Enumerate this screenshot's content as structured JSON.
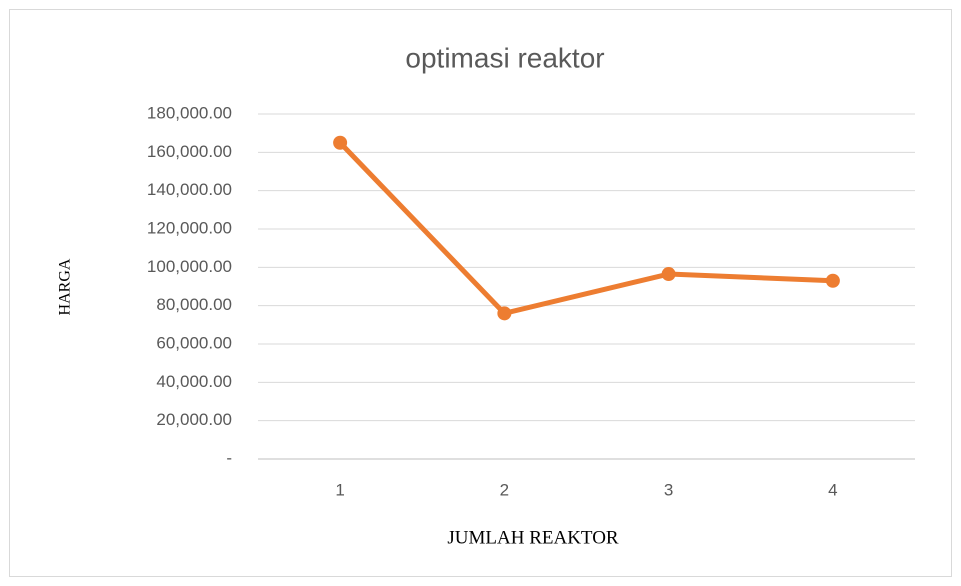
{
  "chart_data": {
    "type": "line",
    "title": "optimasi reaktor",
    "x_label": "JUMLAH REAKTOR",
    "y_label": "HARGA",
    "categories": [
      "1",
      "2",
      "3",
      "4"
    ],
    "series": [
      {
        "name": "HARGA",
        "color": "#ed7d31",
        "values": [
          165000,
          76000,
          96500,
          93000
        ]
      }
    ],
    "ylim": [
      0,
      180000
    ],
    "yticks": [
      {
        "value": 0,
        "label": "-"
      },
      {
        "value": 20000,
        "label": "20,000.00"
      },
      {
        "value": 40000,
        "label": "40,000.00"
      },
      {
        "value": 60000,
        "label": "60,000.00"
      },
      {
        "value": 80000,
        "label": "80,000.00"
      },
      {
        "value": 100000,
        "label": "100,000.00"
      },
      {
        "value": 120000,
        "label": "120,000.00"
      },
      {
        "value": 140000,
        "label": "140,000.00"
      },
      {
        "value": 160000,
        "label": "160,000.00"
      },
      {
        "value": 180000,
        "label": "180,000.00"
      }
    ],
    "grid": true
  }
}
